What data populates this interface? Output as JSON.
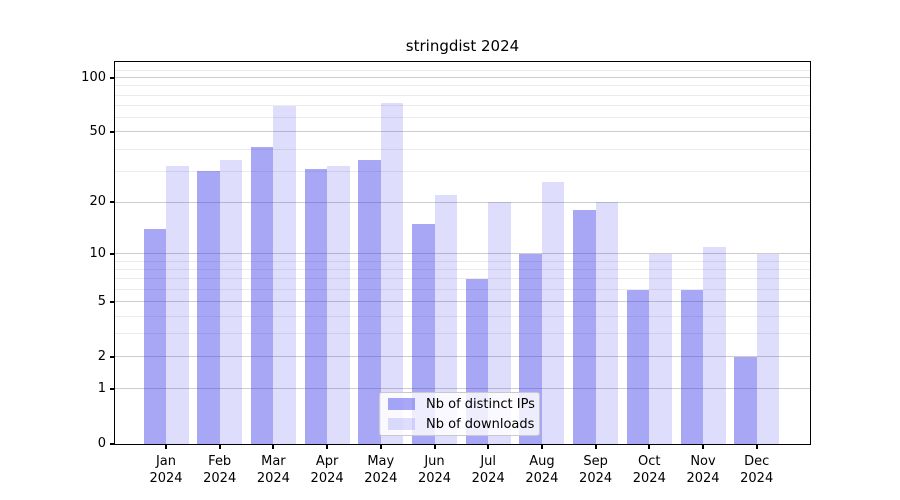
{
  "title": "stringdist 2024",
  "colors": {
    "bar_ips": "rgba(60,60,235,0.45)",
    "bar_downloads": "rgba(60,60,235,0.17)",
    "grid_major": "#cdcdcd",
    "grid_minor": "#ebebeb",
    "axis": "#000000",
    "legend_border": "#c9c9c9",
    "legend_bg": "rgba(255,255,255,0.8)"
  },
  "legend": {
    "entries": [
      {
        "label": "Nb of distinct IPs"
      },
      {
        "label": "Nb of downloads"
      }
    ]
  },
  "chart_data": {
    "type": "bar",
    "title": "stringdist 2024",
    "categories": [
      "Jan",
      "Feb",
      "Mar",
      "Apr",
      "May",
      "Jun",
      "Jul",
      "Aug",
      "Sep",
      "Oct",
      "Nov",
      "Dec"
    ],
    "year_label": "2024",
    "series": [
      {
        "name": "Nb of distinct IPs",
        "values": [
          14,
          30,
          41,
          31,
          35,
          15,
          7,
          10,
          18,
          6,
          6,
          2
        ]
      },
      {
        "name": "Nb of downloads",
        "values": [
          32,
          35,
          70,
          32,
          72,
          22,
          20,
          26,
          20,
          10,
          11,
          10
        ]
      }
    ],
    "xlabel": "",
    "ylabel": "",
    "y_scale": "log10(1+x)",
    "y_ticks": [
      0,
      1,
      2,
      5,
      10,
      20,
      50,
      100
    ],
    "y_minor_ticks": [
      3,
      4,
      6,
      7,
      8,
      9,
      30,
      40,
      60,
      70,
      80,
      90,
      110
    ],
    "ylim": [
      0,
      121
    ],
    "grid": true,
    "legend_position": "lower center"
  }
}
